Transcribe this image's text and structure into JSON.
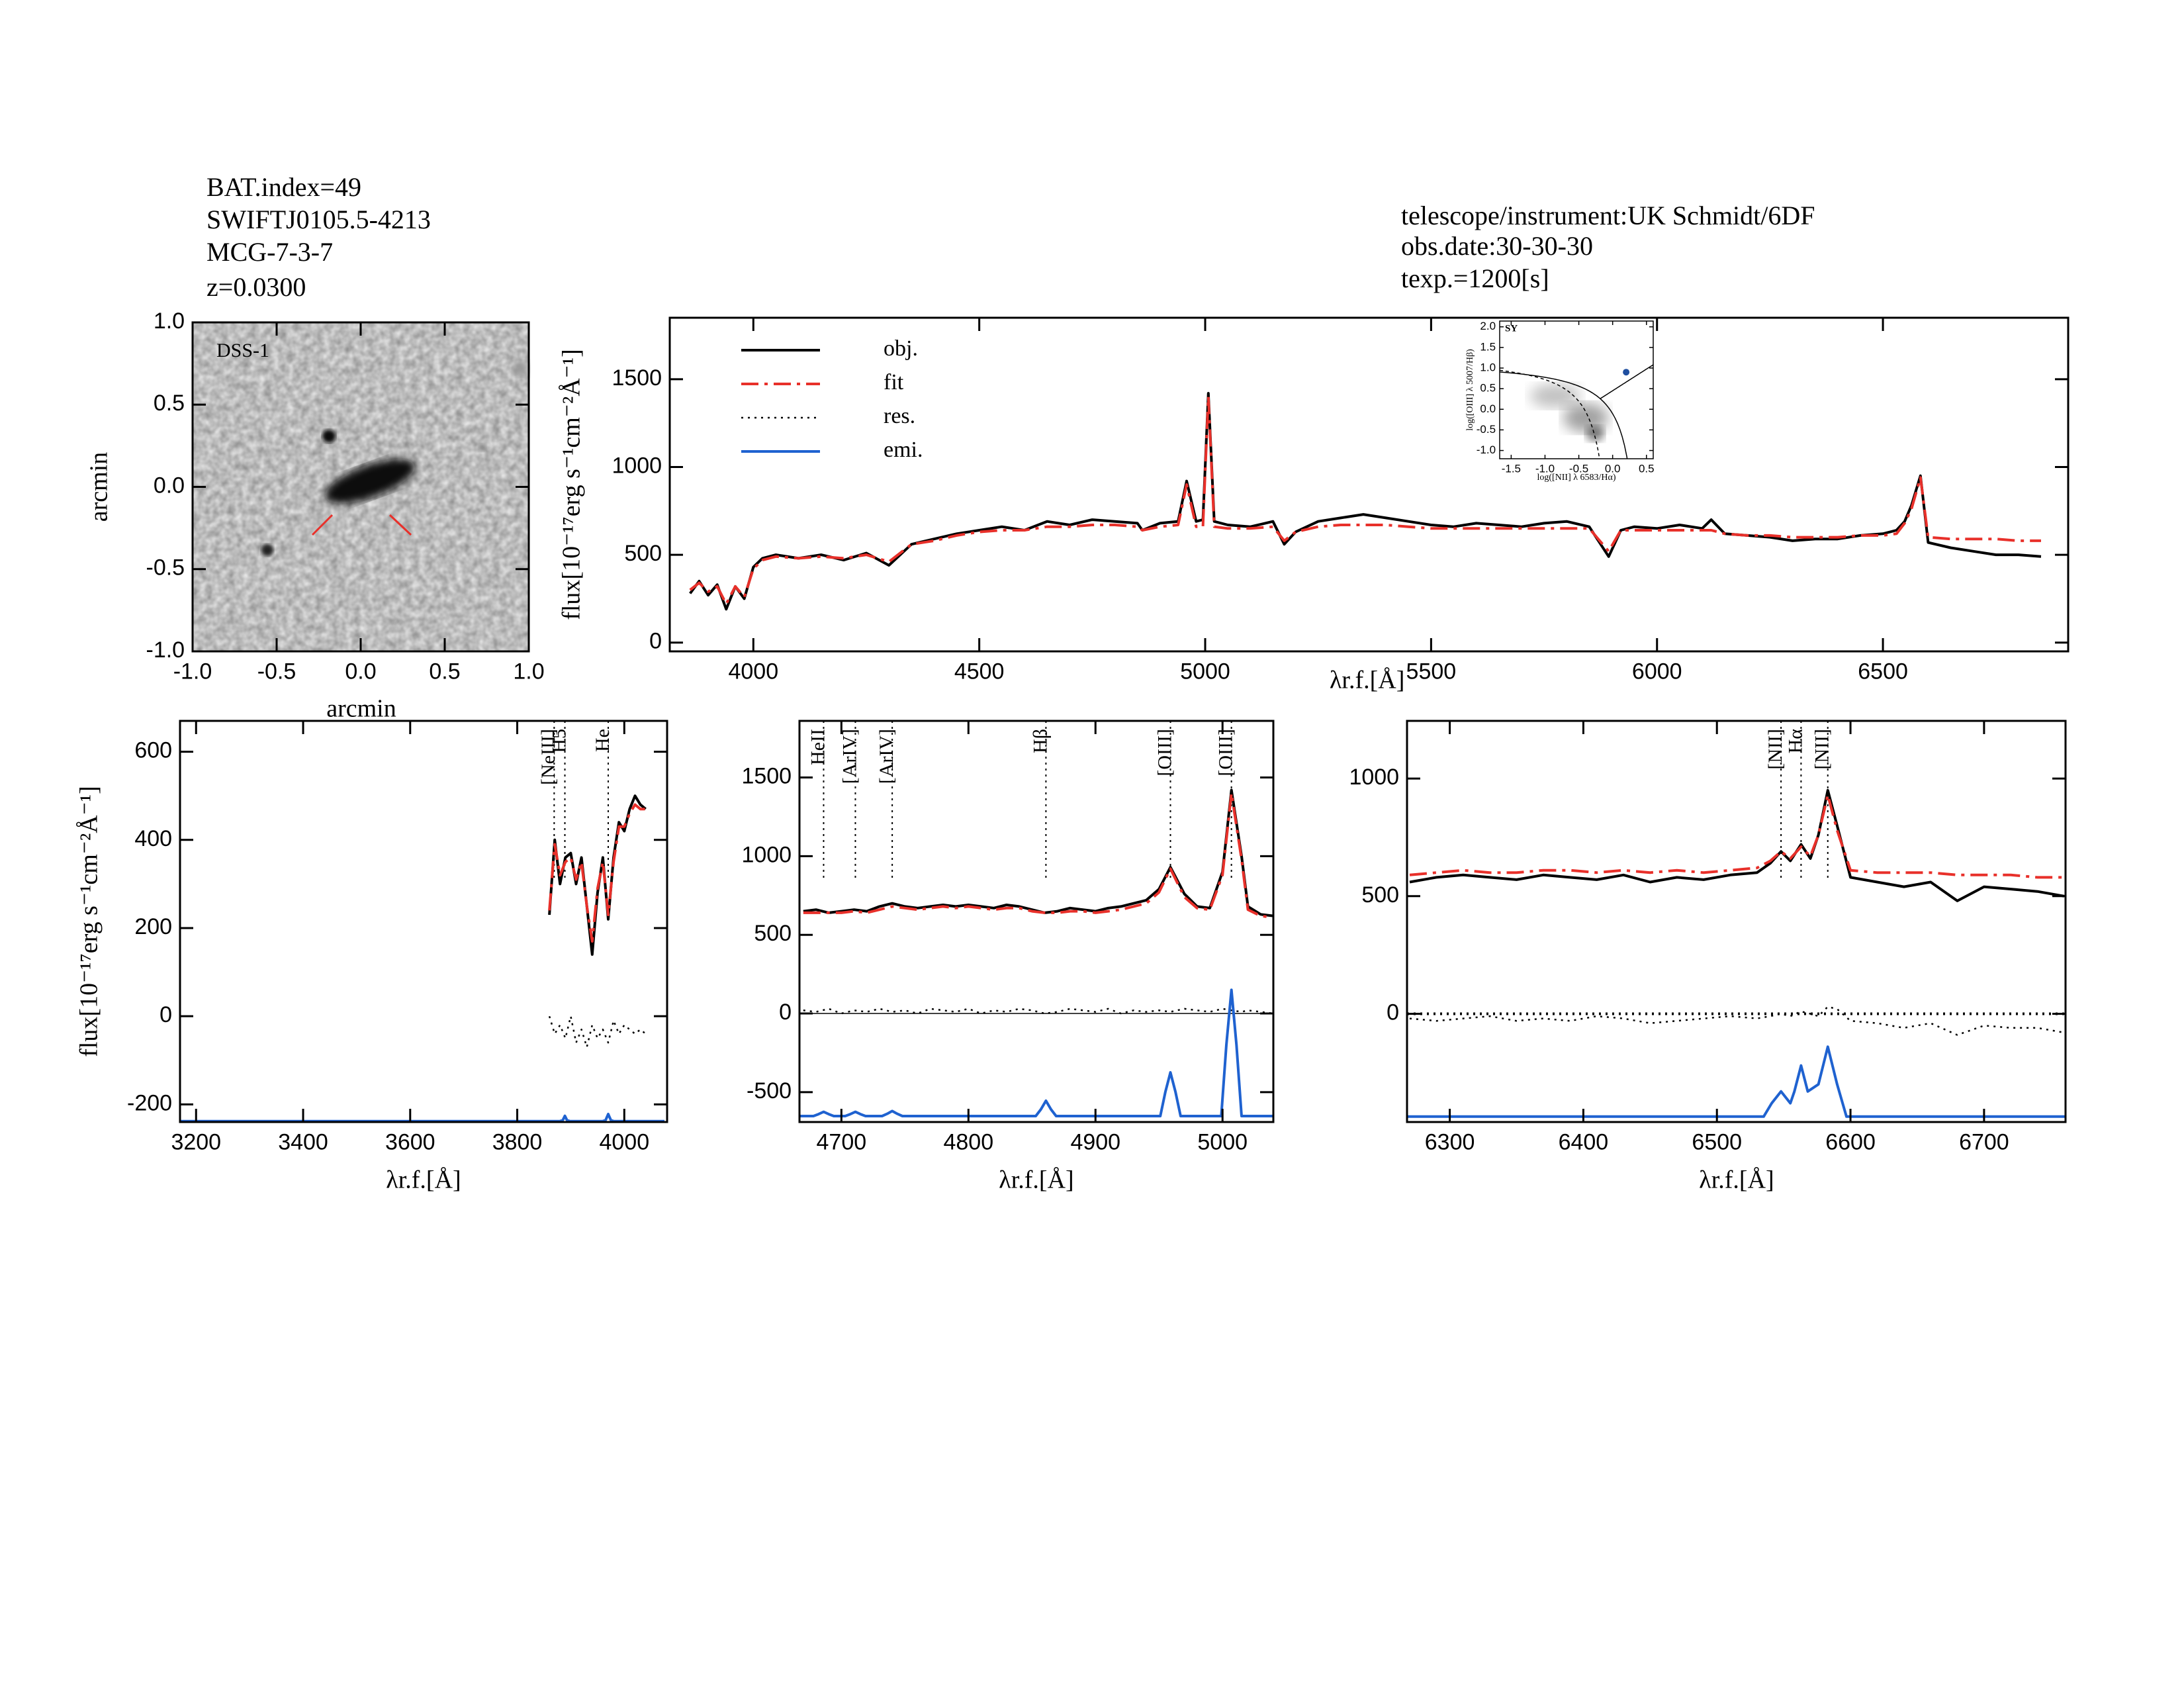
{
  "header": {
    "left": [
      "BAT.index=49",
      "SWIFTJ0105.5-4213",
      "MCG-7-3-7",
      "z=0.0300"
    ],
    "right": [
      "telescope/instrument:UK Schmidt/6DF",
      "obs.date:30-30-30",
      "texp.=1200[s]"
    ]
  },
  "chart_data": [
    {
      "type": "image",
      "label": "DSS-1",
      "xlabel": "arcmin",
      "ylabel": "arcmin",
      "xlim": [
        -1,
        1
      ],
      "ylim": [
        -1,
        1
      ],
      "xticks": [
        {
          "value": -1,
          "label": "-1.0"
        },
        -0.5,
        {
          "value": 0,
          "label": "0.0"
        },
        0.5,
        {
          "value": 1,
          "label": "1.0"
        }
      ],
      "yticks": [
        {
          "value": -1,
          "label": "-1.0"
        },
        -0.5,
        {
          "value": 0,
          "label": "0.0"
        },
        0.5,
        {
          "value": 1,
          "label": "1.0"
        }
      ]
    },
    {
      "type": "line",
      "xlabel": "λr.f.[Å]",
      "ylabel": "flux[10⁻¹⁷erg s⁻¹cm⁻²Å⁻¹]",
      "xlim": [
        3815,
        6910
      ],
      "ylim": [
        -50,
        1850
      ],
      "xticks": [
        4000,
        4500,
        5000,
        5500,
        6000,
        6500
      ],
      "yticks": [
        0,
        500,
        1000,
        1500
      ],
      "legend": [
        {
          "name": "obj.",
          "color": "#000000",
          "dash": "solid"
        },
        {
          "name": "fit",
          "color": "#e8302a",
          "dash": "dashdot"
        },
        {
          "name": "res.",
          "color": "#000000",
          "dash": "dotted"
        },
        {
          "name": "emi.",
          "color": "#1f62d0",
          "dash": "solid"
        }
      ],
      "x": [
        3860,
        3880,
        3900,
        3920,
        3940,
        3960,
        3980,
        4000,
        4020,
        4050,
        4100,
        4150,
        4200,
        4250,
        4300,
        4350,
        4400,
        4450,
        4500,
        4550,
        4600,
        4650,
        4700,
        4750,
        4800,
        4850,
        4861,
        4900,
        4940,
        4959,
        4980,
        4995,
        5007,
        5020,
        5050,
        5100,
        5150,
        5175,
        5200,
        5250,
        5300,
        5350,
        5400,
        5450,
        5500,
        5550,
        5600,
        5650,
        5700,
        5750,
        5800,
        5850,
        5893,
        5920,
        5950,
        6000,
        6050,
        6100,
        6120,
        6150,
        6200,
        6250,
        6300,
        6350,
        6400,
        6450,
        6500,
        6530,
        6548,
        6563,
        6583,
        6600,
        6650,
        6700,
        6750,
        6800,
        6850
      ],
      "series": [
        {
          "color": "#000000",
          "dash": "solid",
          "values": [
            280,
            350,
            270,
            330,
            190,
            320,
            250,
            430,
            480,
            500,
            480,
            500,
            470,
            510,
            440,
            560,
            590,
            620,
            640,
            660,
            640,
            690,
            670,
            700,
            690,
            680,
            640,
            680,
            690,
            920,
            690,
            700,
            1420,
            690,
            670,
            660,
            690,
            560,
            630,
            690,
            710,
            730,
            710,
            690,
            670,
            660,
            680,
            670,
            660,
            680,
            690,
            660,
            490,
            640,
            660,
            650,
            670,
            650,
            700,
            620,
            610,
            600,
            580,
            590,
            590,
            610,
            620,
            640,
            690,
            780,
            950,
            570,
            540,
            520,
            500,
            500,
            490
          ]
        },
        {
          "color": "#e8302a",
          "dash": "dashdot",
          "values": [
            300,
            340,
            290,
            320,
            220,
            320,
            260,
            420,
            470,
            490,
            480,
            490,
            480,
            500,
            460,
            560,
            580,
            610,
            630,
            640,
            640,
            660,
            660,
            670,
            670,
            660,
            640,
            660,
            670,
            900,
            660,
            660,
            1400,
            660,
            650,
            650,
            660,
            580,
            630,
            660,
            670,
            670,
            670,
            660,
            650,
            650,
            650,
            650,
            650,
            650,
            650,
            650,
            520,
            640,
            640,
            640,
            640,
            640,
            640,
            620,
            610,
            610,
            600,
            600,
            600,
            610,
            610,
            620,
            680,
            760,
            940,
            600,
            590,
            590,
            590,
            580,
            580
          ]
        }
      ]
    },
    {
      "type": "scatter",
      "label": "SY",
      "xlabel": "log([NII] λ 6583/Hα)",
      "ylabel": "log([OIII] λ 5007/Hβ)",
      "xlim": [
        -1.67,
        0.6
      ],
      "ylim": [
        -1.2,
        2.14
      ],
      "xticks": [
        -1.5,
        {
          "value": -1,
          "label": "-1.0"
        },
        -0.5,
        {
          "value": 0,
          "label": "0.0"
        },
        0.5
      ],
      "yticks": [
        {
          "value": -1,
          "label": "-1.0"
        },
        -0.5,
        {
          "value": 0,
          "label": "0.0"
        },
        0.5,
        {
          "value": 1,
          "label": "1.0"
        },
        1.5,
        {
          "value": 2,
          "label": "2.0"
        }
      ],
      "color": "#1f4fa0",
      "x": [
        0.2
      ],
      "values": [
        0.9
      ]
    },
    {
      "type": "line",
      "xlabel": "λr.f.[Å]",
      "ylabel": "flux[10⁻¹⁷erg s⁻¹cm⁻²Å⁻¹]",
      "xlim": [
        3170,
        4080
      ],
      "ylim": [
        -240,
        670
      ],
      "xticks": [
        3200,
        3400,
        3600,
        3800,
        4000
      ],
      "yticks": [
        -200,
        0,
        200,
        400,
        600
      ],
      "label_color": "#e8302a",
      "lines": [
        {
          "label": "[NeIII]",
          "x": 3869
        },
        {
          "label": "H5",
          "x": 3889
        },
        {
          "label": "He",
          "x": 3970
        }
      ],
      "x": [
        3860,
        3870,
        3880,
        3890,
        3900,
        3910,
        3920,
        3930,
        3940,
        3950,
        3960,
        3970,
        3980,
        3990,
        4000,
        4010,
        4020,
        4030,
        4040
      ],
      "series": [
        {
          "color": "#000000",
          "dash": "solid",
          "values": [
            230,
            400,
            300,
            360,
            370,
            300,
            360,
            250,
            140,
            280,
            360,
            220,
            360,
            440,
            420,
            470,
            500,
            480,
            470
          ]
        },
        {
          "color": "#e8302a",
          "dash": "dashdot",
          "values": [
            240,
            390,
            320,
            350,
            360,
            310,
            350,
            250,
            170,
            290,
            350,
            230,
            350,
            430,
            430,
            460,
            480,
            470,
            470
          ]
        },
        {
          "color": "#000000",
          "dash": "dotted",
          "values": [
            0,
            -40,
            -20,
            -50,
            0,
            -60,
            -30,
            -70,
            -20,
            -50,
            -30,
            -60,
            -10,
            -40,
            -20,
            -30,
            -40,
            -30,
            -40
          ]
        },
        {
          "color": "#1f62d0",
          "dash": "solid",
          "x": [
            3170,
            3880,
            3885,
            3889,
            3893,
            3898,
            3960,
            3965,
            3970,
            3975,
            3980,
            4075
          ],
          "values": [
            -238,
            -238,
            -236,
            -226,
            -236,
            -238,
            -238,
            -236,
            -222,
            -236,
            -238,
            -238
          ]
        }
      ]
    },
    {
      "type": "line",
      "xlabel": "λr.f.[Å]",
      "xlim": [
        4667,
        5040
      ],
      "ylim": [
        -690,
        1860
      ],
      "xticks": [
        4700,
        4800,
        4900,
        5000
      ],
      "yticks": [
        -500,
        0,
        500,
        1000,
        1500
      ],
      "label_color": "#000000",
      "zero_line": "solid",
      "lines": [
        {
          "label": "HeII",
          "x": 4686
        },
        {
          "label": "[ArIV]",
          "x": 4711
        },
        {
          "label": "[ArIV]",
          "x": 4740
        },
        {
          "label": "Hβ",
          "x": 4861
        },
        {
          "label": "[OIII]",
          "x": 4959
        },
        {
          "label": "[OIII]",
          "x": 5007
        }
      ],
      "x": [
        4670,
        4680,
        4690,
        4700,
        4710,
        4720,
        4730,
        4740,
        4750,
        4760,
        4770,
        4780,
        4790,
        4800,
        4810,
        4820,
        4830,
        4840,
        4850,
        4860,
        4870,
        4880,
        4890,
        4900,
        4910,
        4920,
        4930,
        4940,
        4950,
        4959,
        4970,
        4980,
        4990,
        5000,
        5007,
        5015,
        5020,
        5030,
        5040
      ],
      "series": [
        {
          "color": "#000000",
          "dash": "solid",
          "values": [
            650,
            660,
            640,
            650,
            660,
            650,
            680,
            700,
            680,
            670,
            680,
            690,
            680,
            690,
            680,
            670,
            690,
            680,
            660,
            640,
            650,
            670,
            660,
            650,
            670,
            680,
            700,
            720,
            790,
            930,
            760,
            680,
            670,
            900,
            1420,
            1000,
            680,
            630,
            620
          ]
        },
        {
          "color": "#e8302a",
          "dash": "dashdot",
          "values": [
            640,
            640,
            640,
            640,
            650,
            640,
            660,
            680,
            670,
            660,
            670,
            680,
            670,
            680,
            670,
            660,
            670,
            670,
            650,
            640,
            640,
            650,
            650,
            640,
            650,
            660,
            680,
            700,
            770,
            920,
            740,
            670,
            660,
            880,
            1400,
            980,
            660,
            620,
            610
          ]
        },
        {
          "color": "#000000",
          "dash": "dotted",
          "values": [
            20,
            10,
            30,
            0,
            20,
            10,
            30,
            10,
            20,
            0,
            30,
            20,
            10,
            30,
            0,
            20,
            10,
            30,
            20,
            0,
            10,
            30,
            20,
            10,
            30,
            0,
            20,
            10,
            20,
            10,
            30,
            20,
            10,
            30,
            20,
            10,
            20,
            10,
            0
          ]
        },
        {
          "color": "#1f62d0",
          "dash": "solid",
          "x": [
            4667,
            4678,
            4682,
            4686,
            4690,
            4694,
            4703,
            4707,
            4711,
            4715,
            4719,
            4732,
            4736,
            4740,
            4744,
            4748,
            4853,
            4857,
            4861,
            4865,
            4869,
            4951,
            4955,
            4959,
            4963,
            4967,
            4999,
            5003,
            5007,
            5011,
            5015,
            5040
          ],
          "values": [
            -652,
            -652,
            -640,
            -625,
            -640,
            -652,
            -652,
            -640,
            -625,
            -640,
            -652,
            -652,
            -638,
            -620,
            -638,
            -652,
            -652,
            -610,
            -555,
            -610,
            -652,
            -652,
            -500,
            -375,
            -500,
            -652,
            -652,
            -200,
            150,
            -200,
            -652,
            -652
          ]
        }
      ]
    },
    {
      "type": "line",
      "xlabel": "λr.f.[Å]",
      "xlim": [
        6268,
        6761
      ],
      "ylim": [
        -460,
        1245
      ],
      "xticks": [
        6300,
        6400,
        6500,
        6600,
        6700
      ],
      "yticks": [
        0,
        500,
        1000
      ],
      "label_color": "#000000",
      "zero_line": "dotted",
      "lines": [
        {
          "label": "[NII]",
          "x": 6548
        },
        {
          "label": "Hα",
          "x": 6563
        },
        {
          "label": "[NII]",
          "x": 6583
        }
      ],
      "x": [
        6270,
        6290,
        6310,
        6330,
        6350,
        6370,
        6390,
        6410,
        6430,
        6450,
        6470,
        6490,
        6510,
        6530,
        6540,
        6548,
        6555,
        6563,
        6570,
        6576,
        6583,
        6590,
        6600,
        6620,
        6640,
        6660,
        6680,
        6700,
        6720,
        6740,
        6760
      ],
      "series": [
        {
          "color": "#000000",
          "dash": "solid",
          "values": [
            560,
            580,
            590,
            580,
            570,
            590,
            580,
            570,
            590,
            560,
            580,
            570,
            590,
            600,
            640,
            690,
            650,
            720,
            660,
            760,
            950,
            800,
            580,
            560,
            540,
            560,
            480,
            540,
            530,
            520,
            500
          ]
        },
        {
          "color": "#e8302a",
          "dash": "dashdot",
          "values": [
            590,
            600,
            610,
            600,
            600,
            610,
            610,
            600,
            610,
            600,
            610,
            600,
            610,
            620,
            650,
            690,
            660,
            710,
            670,
            760,
            930,
            780,
            610,
            600,
            600,
            600,
            590,
            590,
            590,
            580,
            580
          ]
        },
        {
          "color": "#000000",
          "dash": "dotted",
          "values": [
            -20,
            -30,
            -20,
            -10,
            -30,
            -20,
            -30,
            -10,
            -20,
            -40,
            -30,
            -20,
            -10,
            -20,
            -10,
            0,
            -10,
            10,
            0,
            -10,
            30,
            20,
            -30,
            -40,
            -60,
            -40,
            -90,
            -50,
            -60,
            -60,
            -80
          ]
        },
        {
          "color": "#1f62d0",
          "dash": "solid",
          "x": [
            6268,
            6535,
            6541,
            6548,
            6555,
            6558,
            6563,
            6568,
            6576,
            6583,
            6590,
            6597,
            6761
          ],
          "values": [
            -437,
            -437,
            -380,
            -330,
            -380,
            -330,
            -220,
            -330,
            -300,
            -140,
            -300,
            -437,
            -437
          ]
        }
      ]
    }
  ]
}
